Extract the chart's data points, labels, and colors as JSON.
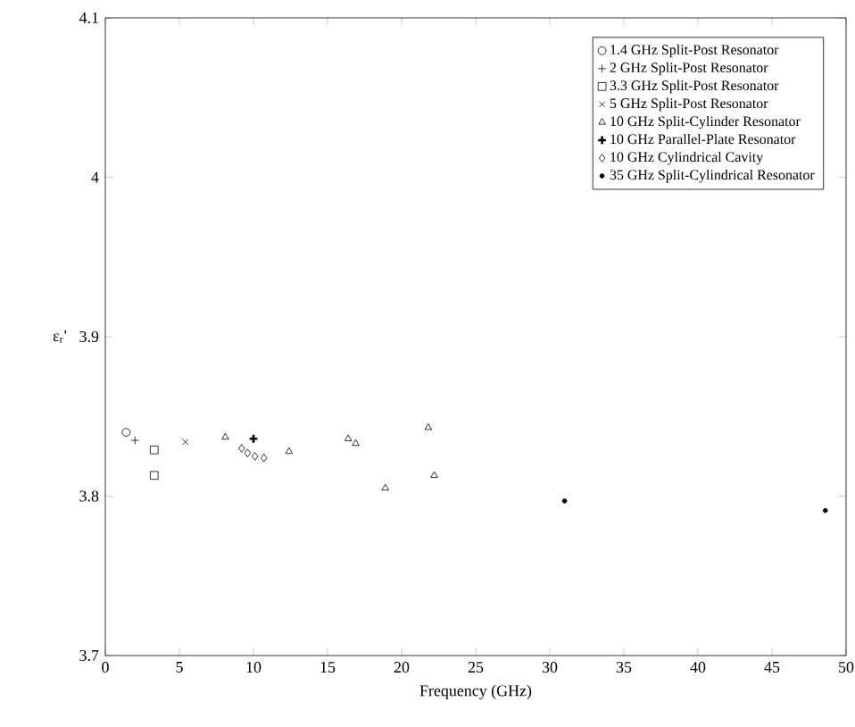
{
  "chart_data": {
    "type": "scatter",
    "xlabel": "Frequency (GHz)",
    "ylabel": "ε$_{r}$'",
    "xlim": [
      0,
      50
    ],
    "ylim": [
      3.7,
      4.1
    ],
    "xticks": [
      0,
      5,
      10,
      15,
      20,
      25,
      30,
      35,
      40,
      45,
      50
    ],
    "yticks": [
      3.7,
      3.8,
      3.9,
      4,
      4.1
    ],
    "grid": false,
    "legend": "top right",
    "series": [
      {
        "name": "1.4 GHz Split-Post Resonator",
        "color": "#000000",
        "marker": "circle",
        "x": [
          1.4
        ],
        "values": [
          3.84
        ]
      },
      {
        "name": "2 GHz Split-Post Resonator",
        "color": "#000000",
        "marker": "plus",
        "x": [
          2.0
        ],
        "values": [
          3.835
        ]
      },
      {
        "name": "3.3 GHz Split-Post Resonator",
        "color": "#000000",
        "marker": "square",
        "x": [
          3.3,
          3.3
        ],
        "values": [
          3.829,
          3.813
        ]
      },
      {
        "name": "5 GHz Split-Post Resonator",
        "color": "#000000",
        "marker": "cross",
        "x": [
          5.4
        ],
        "values": [
          3.834
        ]
      },
      {
        "name": "10 GHz Split-Cylinder Resonator",
        "color": "#000000",
        "marker": "triangle",
        "x": [
          8.1,
          12.4,
          16.4,
          16.9,
          18.9,
          21.8,
          22.2
        ],
        "values": [
          3.837,
          3.828,
          3.836,
          3.833,
          3.805,
          3.843,
          3.813
        ]
      },
      {
        "name": "10 GHz Parallel-Plate Resonator",
        "color": "#000000",
        "x": [
          10.0
        ],
        "values": [
          3.836
        ]
      },
      {
        "name": "10 GHz Cylindrical Cavity",
        "color": "#000000",
        "marker": "diamond",
        "x": [
          9.2,
          9.6,
          10.1,
          10.7
        ],
        "values": [
          3.83,
          3.827,
          3.825,
          3.824
        ]
      },
      {
        "name": "35 GHz Split-Cylindrical Resonator",
        "color": "#000000",
        "marker": "dot",
        "x": [
          31.0,
          48.6
        ],
        "values": [
          3.797,
          3.791
        ]
      }
    ]
  }
}
